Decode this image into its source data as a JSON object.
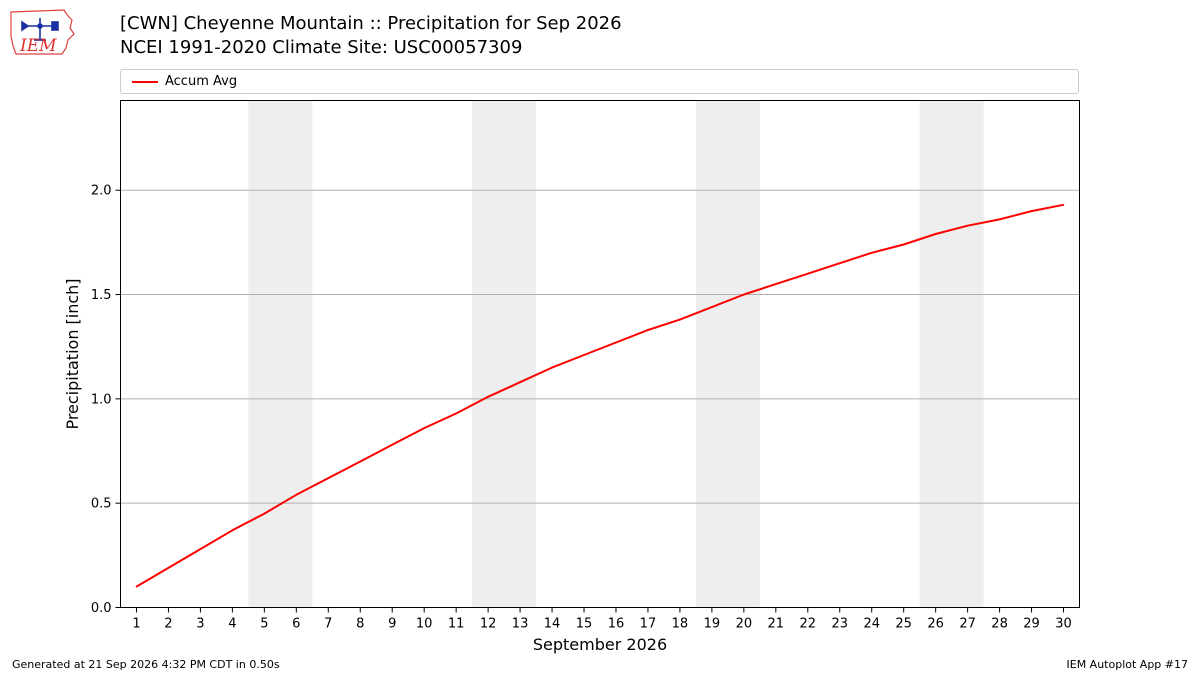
{
  "header": {
    "logo_text": "IEM",
    "title_line1": "[CWN] Cheyenne Mountain :: Precipitation for Sep 2026",
    "title_line2": "NCEI 1991-2020 Climate Site: USC00057309"
  },
  "footer": {
    "generated": "Generated at 21 Sep 2026 4:32 PM CDT in 0.50s",
    "app": "IEM Autoplot App #17"
  },
  "colors": {
    "series": "#ff0000",
    "weekend_shade": "#eeeeee",
    "grid": "#b0b0b0"
  },
  "chart_data": {
    "type": "line",
    "xlabel": "September 2026",
    "ylabel": "Precipitation [inch]",
    "xlim": [
      0.5,
      30.5
    ],
    "ylim": [
      0,
      2.43
    ],
    "yticks": [
      0.0,
      0.5,
      1.0,
      1.5,
      2.0
    ],
    "ytick_labels": [
      "0.0",
      "0.5",
      "1.0",
      "1.5",
      "2.0"
    ],
    "x": [
      1,
      2,
      3,
      4,
      5,
      6,
      7,
      8,
      9,
      10,
      11,
      12,
      13,
      14,
      15,
      16,
      17,
      18,
      19,
      20,
      21,
      22,
      23,
      24,
      25,
      26,
      27,
      28,
      29,
      30
    ],
    "xtick_labels": [
      "1",
      "2",
      "3",
      "4",
      "5",
      "6",
      "7",
      "8",
      "9",
      "10",
      "11",
      "12",
      "13",
      "14",
      "15",
      "16",
      "17",
      "18",
      "19",
      "20",
      "21",
      "22",
      "23",
      "24",
      "25",
      "26",
      "27",
      "28",
      "29",
      "30"
    ],
    "grid": "horizontal",
    "legend_position": "top",
    "shaded_ranges": [
      [
        4.5,
        6.5
      ],
      [
        11.5,
        13.5
      ],
      [
        18.5,
        20.5
      ],
      [
        25.5,
        27.5
      ]
    ],
    "series": [
      {
        "name": "Accum Avg",
        "values": [
          0.1,
          0.19,
          0.28,
          0.37,
          0.45,
          0.54,
          0.62,
          0.7,
          0.78,
          0.86,
          0.93,
          1.01,
          1.08,
          1.15,
          1.21,
          1.27,
          1.33,
          1.38,
          1.44,
          1.5,
          1.55,
          1.6,
          1.65,
          1.7,
          1.74,
          1.79,
          1.83,
          1.86,
          1.9,
          1.93
        ]
      }
    ]
  }
}
